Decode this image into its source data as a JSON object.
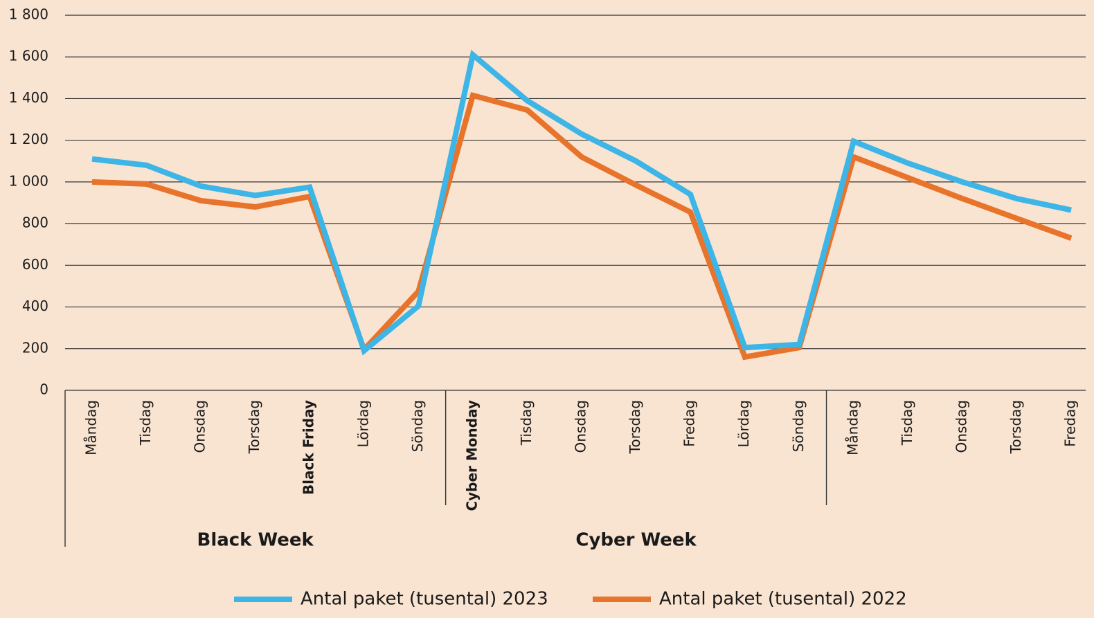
{
  "chart_data": {
    "type": "line",
    "categories": [
      "Måndag",
      "Tisdag",
      "Onsdag",
      "Torsdag",
      "Black Friday",
      "Lördag",
      "Söndag",
      "Cyber Monday",
      "Tisdag",
      "Onsdag",
      "Torsdag",
      "Fredag",
      "Lördag",
      "Söndag",
      "Måndag",
      "Tisdag",
      "Onsdag",
      "Torsdag",
      "Fredag"
    ],
    "category_groups": [
      "Black Week",
      "Cyber Week"
    ],
    "series": [
      {
        "name": "Antal paket (tusental) 2023",
        "color": "#3db5e6",
        "values": [
          1110,
          1080,
          980,
          935,
          975,
          190,
          405,
          1610,
          1390,
          1230,
          1100,
          940,
          205,
          220,
          1195,
          1090,
          1000,
          920,
          865
        ]
      },
      {
        "name": "Antal paket (tusental) 2022",
        "color": "#e8732a",
        "values": [
          1000,
          990,
          910,
          880,
          930,
          195,
          475,
          1415,
          1345,
          1120,
          985,
          855,
          160,
          205,
          1120,
          1020,
          920,
          825,
          730
        ]
      }
    ],
    "ylim": [
      0,
      1800
    ],
    "yticks": [
      0,
      200,
      400,
      600,
      800,
      {
        "value": 1000,
        "label": "1 000"
      },
      {
        "value": 1200,
        "label": "1 200"
      },
      {
        "value": 1400,
        "label": "1 400"
      },
      {
        "value": 1600,
        "label": "1 600"
      },
      {
        "value": 1800,
        "label": "1 800"
      }
    ],
    "grid": true,
    "legend": "bottom"
  }
}
